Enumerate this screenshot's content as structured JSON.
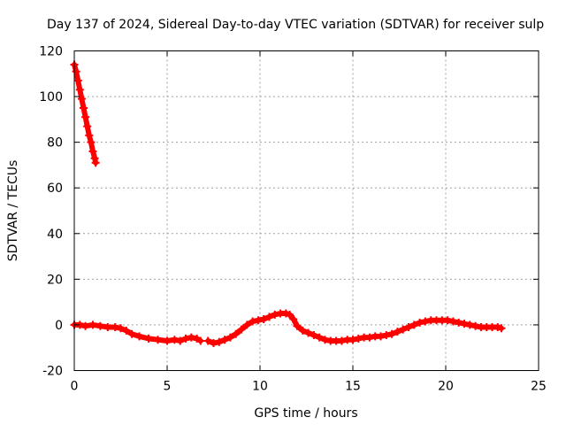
{
  "chart_data": {
    "type": "scatter",
    "title": "Day 137 of 2024, Sidereal Day-to-day VTEC variation (SDTVAR) for receiver sulp",
    "xlabel": "GPS time / hours",
    "ylabel": "SDTVAR / TECUs",
    "xlim": [
      0,
      25
    ],
    "ylim": [
      -20,
      120
    ],
    "x_ticks": [
      0,
      5,
      10,
      15,
      20,
      25
    ],
    "y_ticks": [
      -20,
      0,
      20,
      40,
      60,
      80,
      100,
      120
    ],
    "grid": true,
    "series": [
      {
        "name": "SDTVAR",
        "color": "#ff0000",
        "marker": "plus",
        "segments": [
          {
            "x": [
              0.0,
              0.1,
              0.2,
              0.3,
              0.4,
              0.5,
              0.6,
              0.7,
              0.8,
              0.9,
              1.0,
              1.1,
              1.15
            ],
            "y": [
              114,
              111,
              107,
              103,
              99,
              95,
              91,
              87,
              83,
              80,
              76,
              73,
              71
            ]
          },
          {
            "x": [
              0.0,
              0.3,
              0.6,
              1.0,
              1.4,
              1.8,
              2.2,
              2.5,
              2.8,
              3.1,
              3.5,
              4.0,
              4.5,
              5.0,
              5.4,
              5.7,
              6.0,
              6.3,
              6.6,
              6.8
            ],
            "y": [
              0,
              0,
              -0.5,
              0,
              -0.5,
              -1,
              -1,
              -1.5,
              -2.5,
              -4,
              -5,
              -6,
              -6.5,
              -7,
              -6.5,
              -7,
              -6,
              -5.5,
              -6,
              -7
            ]
          },
          {
            "x": [
              7.2,
              7.5,
              7.8,
              8.1,
              8.4,
              8.7,
              9.0,
              9.3,
              9.6,
              9.9,
              10.2,
              10.5,
              10.8,
              11.1,
              11.4,
              11.6,
              11.8,
              12.0,
              12.3,
              12.6,
              12.9,
              13.2,
              13.5,
              13.8,
              14.1,
              14.4,
              14.7,
              15.0,
              15.3,
              15.6,
              15.9,
              16.2,
              16.5,
              16.8,
              17.1,
              17.4,
              17.7,
              18.0,
              18.3,
              18.6,
              18.9,
              19.2,
              19.5,
              19.8,
              20.1,
              20.4,
              20.7,
              21.0,
              21.3,
              21.6,
              21.9,
              22.2,
              22.5,
              22.8,
              23.0
            ],
            "y": [
              -7,
              -8,
              -7.5,
              -6.5,
              -5.5,
              -4,
              -2,
              0,
              1.5,
              2,
              2.5,
              3.5,
              4.5,
              5,
              5,
              4.5,
              2.5,
              -0.5,
              -2.5,
              -3.5,
              -4.5,
              -5.5,
              -6.5,
              -7,
              -7,
              -7,
              -6.5,
              -6.5,
              -6,
              -5.5,
              -5.5,
              -5,
              -5,
              -4.5,
              -4,
              -3,
              -2,
              -1,
              0,
              1,
              1.5,
              2,
              2,
              2,
              2,
              1.5,
              1,
              0.5,
              0,
              -0.5,
              -1,
              -1,
              -1,
              -1,
              -1.5
            ]
          }
        ]
      }
    ]
  }
}
